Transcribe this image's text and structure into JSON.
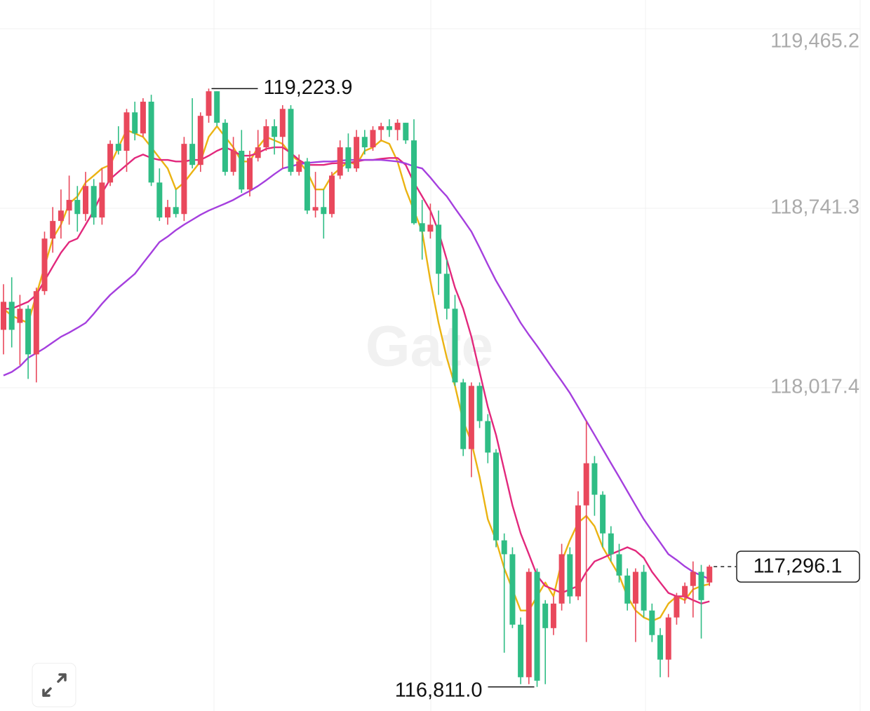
{
  "chart_data": {
    "type": "candlestick",
    "watermark": "Gate",
    "up_color": "#e9485c",
    "down_color": "#2fbd85",
    "open": [
      118251,
      118364,
      118279,
      118336,
      118152,
      118407,
      118619,
      118690,
      118732,
      118775,
      118718,
      118831,
      118704,
      118845,
      119001,
      118973,
      119128,
      119043,
      119171,
      118845,
      118704,
      118746,
      118718,
      119001,
      118916,
      119114,
      119213,
      119086,
      118888,
      118973,
      118817,
      118944,
      118987,
      119072,
      119029,
      119142,
      118888,
      118930,
      118732,
      118746,
      118718,
      118873,
      118987,
      118902,
      119029,
      118987,
      119057,
      119072,
      119057,
      119086,
      119015,
      118681,
      118647,
      118675,
      118477,
      118336,
      118039,
      117770,
      118025,
      117883,
      117756,
      117402,
      117346,
      117062,
      116850,
      117275,
      117147,
      117048,
      117147,
      117346,
      117176,
      117543,
      117713,
      117586,
      117430,
      117346,
      117260,
      117147,
      117275,
      117119,
      117020,
      116921,
      117091,
      117176,
      117218,
      117275,
      117232
    ],
    "high": [
      118435,
      118463,
      118392,
      118350,
      118421,
      118647,
      118746,
      118817,
      118873,
      118831,
      118888,
      118859,
      118902,
      119015,
      119072,
      119142,
      119171,
      119185,
      119199,
      118902,
      118775,
      118817,
      119029,
      119185,
      119128,
      119223.9,
      119213,
      119100,
      119029,
      119057,
      118973,
      119057,
      119100,
      119100,
      119157,
      119157,
      118958,
      118944,
      118888,
      118817,
      118888,
      119015,
      119043,
      119057,
      119057,
      119072,
      119086,
      119100,
      119100,
      119086,
      119100,
      118775,
      118760,
      118732,
      118534,
      118392,
      118053,
      118039,
      118039,
      117911,
      117770,
      117430,
      117374,
      117091,
      117289,
      117289,
      117161,
      117176,
      117388,
      117374,
      117600,
      117883,
      117742,
      117600,
      117459,
      117388,
      117289,
      117289,
      117303,
      117147,
      117048,
      117105,
      117190,
      117232,
      117317,
      117303,
      117303
    ],
    "low": [
      118152,
      118180,
      118109,
      118053,
      118039,
      118392,
      118562,
      118619,
      118675,
      118647,
      118690,
      118675,
      118675,
      118831,
      118958,
      118888,
      119015,
      119029,
      118831,
      118690,
      118675,
      118704,
      118690,
      118902,
      118888,
      119086,
      119072,
      118873,
      118873,
      118803,
      118789,
      118930,
      118973,
      118958,
      118902,
      118873,
      118873,
      118718,
      118704,
      118619,
      118704,
      118859,
      118888,
      118888,
      118958,
      118973,
      119015,
      119029,
      119015,
      119001,
      118675,
      118534,
      118619,
      118392,
      118293,
      118025,
      117742,
      117657,
      117855,
      117713,
      117374,
      116949,
      117048,
      116822,
      116822,
      116811.0,
      116822,
      117020,
      117119,
      117147,
      117161,
      116992,
      117501,
      117374,
      117317,
      117232,
      117119,
      116992,
      117091,
      116992,
      116850,
      116850,
      117062,
      117147,
      117091,
      117006,
      117218
    ],
    "close": [
      118364,
      118251,
      118336,
      118152,
      118407,
      118619,
      118690,
      118732,
      118775,
      118718,
      118831,
      118704,
      118845,
      119001,
      118973,
      119128,
      119043,
      119171,
      118845,
      118704,
      118746,
      118718,
      119001,
      118916,
      119114,
      119213,
      119086,
      118888,
      118973,
      118817,
      118944,
      118987,
      119072,
      119029,
      119142,
      118888,
      118930,
      118732,
      118746,
      118718,
      118873,
      118987,
      118902,
      119029,
      118987,
      119057,
      119072,
      119057,
      119086,
      119015,
      118681,
      118647,
      118675,
      118477,
      118336,
      118039,
      117770,
      118025,
      117883,
      117756,
      117402,
      117346,
      117062,
      116850,
      117275,
      116836,
      117048,
      117147,
      117346,
      117176,
      117543,
      117713,
      117586,
      117430,
      117346,
      117260,
      117147,
      117275,
      117119,
      117020,
      116921,
      117091,
      117176,
      117218,
      117275,
      117161,
      117296.1
    ],
    "series": [
      {
        "color": "#ebb312",
        "values": [
          118336,
          118308,
          118293,
          118279,
          118392,
          118506,
          118619,
          118675,
          118760,
          118789,
          118845,
          118873,
          118902,
          118916,
          118987,
          119057,
          119043,
          119029,
          118987,
          118944,
          118902,
          118817,
          118845,
          118888,
          118930,
          119029,
          119072,
          119029,
          118987,
          118930,
          118930,
          118987,
          119029,
          119015,
          119001,
          118958,
          118930,
          118888,
          118817,
          118817,
          118873,
          118902,
          118930,
          118916,
          118973,
          118987,
          119015,
          119001,
          118930,
          118817,
          118732,
          118647,
          118449,
          118279,
          118138,
          118025,
          117883,
          117798,
          117657,
          117487,
          117402,
          117289,
          117204,
          117119,
          117119,
          117176,
          117232,
          117176,
          117317,
          117402,
          117473,
          117501,
          117459,
          117374,
          117317,
          117260,
          117176,
          117119,
          117091,
          117077,
          117091,
          117147,
          117176,
          117161,
          117204,
          117218,
          117226
        ]
      },
      {
        "color": "#e2287c",
        "values": [
          118336,
          118336,
          118350,
          118364,
          118392,
          118449,
          118506,
          118562,
          118605,
          118619,
          118675,
          118732,
          118803,
          118859,
          118888,
          118916,
          118944,
          118958,
          118944,
          118936,
          118936,
          118930,
          118930,
          118936,
          118936,
          118953,
          118973,
          118987,
          118973,
          118953,
          118953,
          118964,
          118981,
          118987,
          118987,
          118964,
          118936,
          118916,
          118916,
          118916,
          118922,
          118924,
          118924,
          118930,
          118936,
          118936,
          118941,
          118944,
          118944,
          118916,
          118845,
          118789,
          118732,
          118647,
          118534,
          118421,
          118336,
          118223,
          118081,
          117940,
          117827,
          117685,
          117543,
          117430,
          117346,
          117260,
          117218,
          117204,
          117190,
          117204,
          117218,
          117275,
          117317,
          117331,
          117346,
          117360,
          117374,
          117360,
          117331,
          117275,
          117232,
          117190,
          117176,
          117176,
          117161,
          117147,
          117156
        ]
      },
      {
        "color": "#a53fde",
        "values": [
          118067,
          118081,
          118104,
          118138,
          118157,
          118177,
          118200,
          118223,
          118240,
          118259,
          118279,
          118316,
          118356,
          118392,
          118421,
          118449,
          118477,
          118520,
          118562,
          118605,
          118627,
          118653,
          118675,
          118695,
          118715,
          118732,
          118746,
          118760,
          118775,
          118794,
          118811,
          118831,
          118854,
          118879,
          118902,
          118910,
          118919,
          118924,
          118927,
          118930,
          118930,
          118933,
          118936,
          118936,
          118936,
          118936,
          118936,
          118933,
          118930,
          118922,
          118910,
          118902,
          118865,
          118825,
          118789,
          118741,
          118695,
          118647,
          118582,
          118514,
          118449,
          118392,
          118336,
          118279,
          118231,
          118186,
          118138,
          118090,
          118044,
          117996,
          117940,
          117883,
          117827,
          117770,
          117713,
          117657,
          117600,
          117543,
          117487,
          117439,
          117393,
          117346,
          117323,
          117297,
          117275,
          117260,
          117246
        ]
      }
    ],
    "ylim": [
      116713.8,
      119581.1
    ],
    "yticks": [
      {
        "value": 119465.2,
        "label": "119,465.2"
      },
      {
        "value": 118741.3,
        "label": "118,741.3"
      },
      {
        "value": 118017.4,
        "label": "118,017.4"
      }
    ],
    "grid": true,
    "high_marker": {
      "value": 119223.9,
      "label": "119,223.9"
    },
    "low_marker": {
      "value": 116811.0,
      "label": "116,811.0"
    },
    "last_price": {
      "value": 117296.1,
      "label": "117,296.1"
    }
  }
}
